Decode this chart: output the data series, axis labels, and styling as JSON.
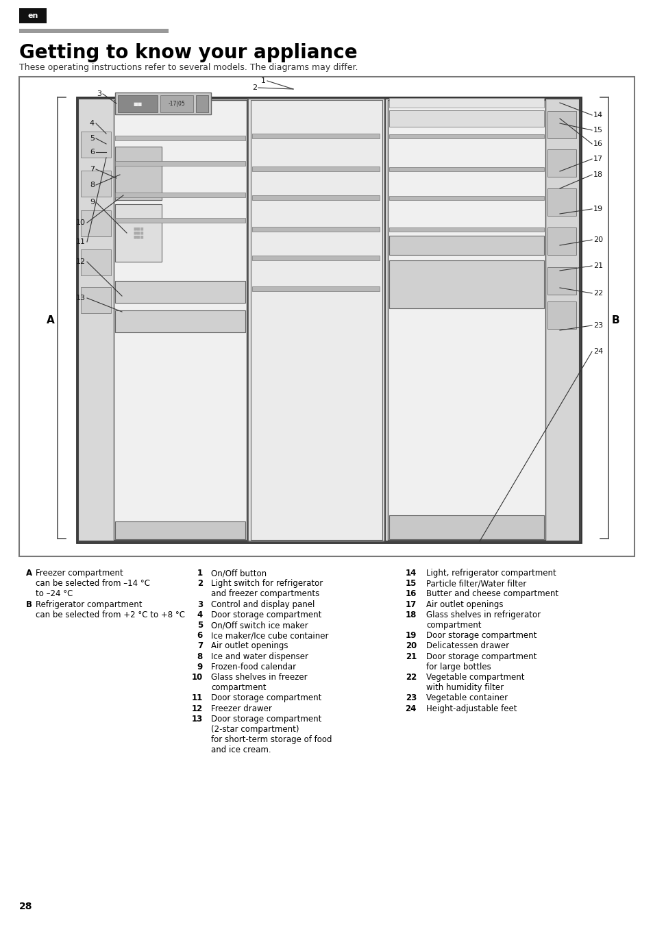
{
  "page_num": "28",
  "lang_tag": "en",
  "title": "Getting to know your appliance",
  "subtitle": "These operating instructions refer to several models. The diagrams may differ.",
  "col2_items": [
    {
      "num": "1",
      "text": "On/Off button",
      "extra": []
    },
    {
      "num": "2",
      "text": "Light switch for refrigerator",
      "extra": [
        "and freezer compartments"
      ]
    },
    {
      "num": "3",
      "text": "Control and display panel",
      "extra": []
    },
    {
      "num": "4",
      "text": "Door storage compartment",
      "extra": []
    },
    {
      "num": "5",
      "text": "On/Off switch ice maker",
      "extra": []
    },
    {
      "num": "6",
      "text": "Ice maker/Ice cube container",
      "extra": []
    },
    {
      "num": "7",
      "text": "Air outlet openings",
      "extra": []
    },
    {
      "num": "8",
      "text": "Ice and water dispenser",
      "extra": []
    },
    {
      "num": "9",
      "text": "Frozen-food calendar",
      "extra": []
    },
    {
      "num": "10",
      "text": "Glass shelves in freezer",
      "extra": [
        "compartment"
      ]
    },
    {
      "num": "11",
      "text": "Door storage compartment",
      "extra": []
    },
    {
      "num": "12",
      "text": "Freezer drawer",
      "extra": []
    },
    {
      "num": "13",
      "text": "Door storage compartment",
      "extra": [
        "(2-star compartment)",
        "for short-term storage of food",
        "and ice cream."
      ]
    }
  ],
  "col3_items": [
    {
      "num": "14",
      "text": "Light, refrigerator compartment",
      "extra": []
    },
    {
      "num": "15",
      "text": "Particle filter/Water filter",
      "extra": []
    },
    {
      "num": "16",
      "text": "Butter and cheese compartment",
      "extra": []
    },
    {
      "num": "17",
      "text": "Air outlet openings",
      "extra": []
    },
    {
      "num": "18",
      "text": "Glass shelves in refrigerator",
      "extra": [
        "compartment"
      ]
    },
    {
      "num": "19",
      "text": "Door storage compartment",
      "extra": []
    },
    {
      "num": "20",
      "text": "Delicatessen drawer",
      "extra": []
    },
    {
      "num": "21",
      "text": "Door storage compartment",
      "extra": [
        "for large bottles"
      ]
    },
    {
      "num": "22",
      "text": "Vegetable compartment",
      "extra": [
        "with humidity filter"
      ]
    },
    {
      "num": "23",
      "text": "Vegetable container",
      "extra": []
    },
    {
      "num": "24",
      "text": "Height-adjustable feet",
      "extra": []
    }
  ]
}
